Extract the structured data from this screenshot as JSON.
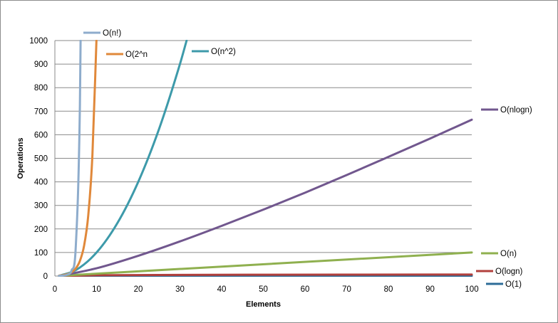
{
  "chart_data": {
    "type": "line",
    "title": "",
    "xlabel": "Elements",
    "ylabel": "Operations",
    "xlim": [
      0,
      100
    ],
    "ylim": [
      0,
      1000
    ],
    "xticks": [
      "0",
      "10",
      "20",
      "30",
      "40",
      "50",
      "60",
      "70",
      "80",
      "90",
      "100"
    ],
    "yticks": [
      "0",
      "100",
      "200",
      "300",
      "400",
      "500",
      "600",
      "700",
      "800",
      "900",
      "1000"
    ],
    "grid": "horizontal",
    "legend": "inline labels at line ends",
    "series": [
      {
        "name": "O(n!)",
        "color": "#8eaccc",
        "x": [
          1,
          2,
          3,
          4,
          5,
          6,
          6.17
        ],
        "y": [
          1,
          2,
          6,
          24,
          120,
          720,
          1000
        ]
      },
      {
        "name": "O(2^n",
        "color": "#e0883a",
        "x": [
          1,
          2,
          3,
          4,
          5,
          6,
          7,
          8,
          9,
          9.97
        ],
        "y": [
          2,
          4,
          8,
          16,
          32,
          64,
          128,
          256,
          512,
          1000
        ]
      },
      {
        "name": "O(n^2)",
        "color": "#3d9aaa",
        "x": [
          1,
          5,
          10,
          15,
          20,
          25,
          30,
          31.6
        ],
        "y": [
          1,
          25,
          100,
          225,
          400,
          625,
          900,
          1000
        ]
      },
      {
        "name": "O(nlogn)",
        "color": "#71578e",
        "x": [
          1,
          10,
          20,
          30,
          40,
          50,
          60,
          70,
          80,
          90,
          100
        ],
        "y": [
          0,
          33,
          86,
          147,
          213,
          282,
          354,
          429,
          506,
          584,
          664
        ]
      },
      {
        "name": "O(n)",
        "color": "#8fb04f",
        "x": [
          1,
          100
        ],
        "y": [
          1,
          100
        ]
      },
      {
        "name": "O(logn)",
        "color": "#b2403d",
        "x": [
          1,
          10,
          30,
          50,
          70,
          100
        ],
        "y": [
          0,
          3.3,
          4.9,
          5.6,
          6.1,
          6.6
        ]
      },
      {
        "name": "O(1)",
        "color": "#2d6c98",
        "x": [
          1,
          100
        ],
        "y": [
          1,
          1
        ]
      }
    ]
  }
}
